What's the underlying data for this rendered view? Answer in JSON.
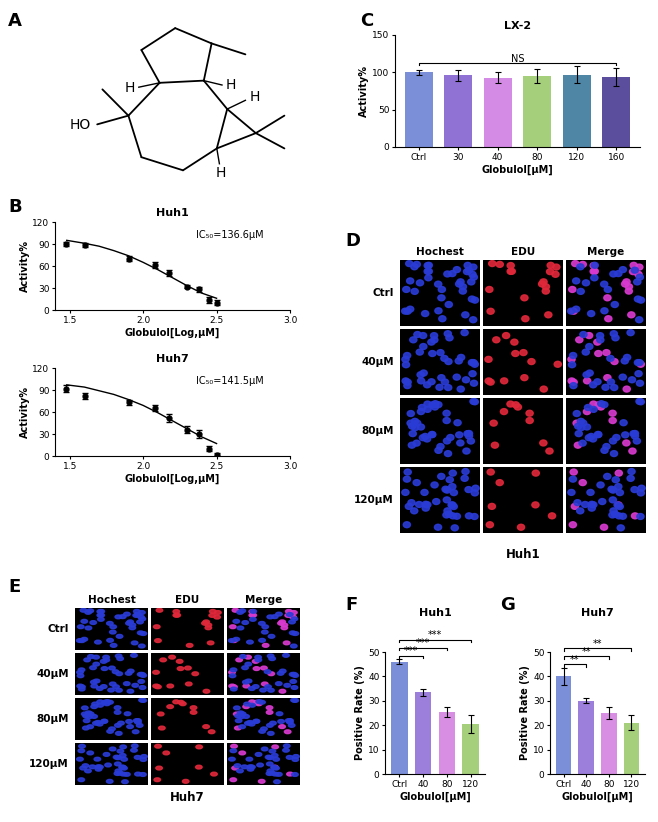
{
  "panel_labels": [
    "A",
    "B",
    "C",
    "D",
    "E",
    "F",
    "G"
  ],
  "structure": {
    "atom_labels": [
      "H",
      "H",
      "H",
      "H",
      "HO"
    ]
  },
  "chart_data": [
    {
      "type": "scatter",
      "title": "Huh1",
      "x_label": "Globulol[Log,μM]",
      "y_label": "Activity%",
      "xlim": [
        1.4,
        3.0
      ],
      "xticks": [
        1.5,
        2.0,
        2.5,
        3.0
      ],
      "ylim": [
        0,
        120
      ],
      "yticks": [
        0,
        30,
        60,
        90,
        120
      ],
      "annotations": [
        {
          "text": "IC₅₀=136.6μM"
        }
      ],
      "series": [
        {
          "type": "scatter",
          "color": "#000000",
          "marker": "circle",
          "x": [
            1.477,
            1.602,
            1.903,
            2.079,
            2.176,
            2.301,
            2.38,
            2.447,
            2.505
          ],
          "values": [
            90,
            89,
            70,
            61,
            50,
            32,
            28,
            14,
            10
          ],
          "errors": [
            3,
            3,
            3,
            4,
            4,
            2,
            4,
            4,
            3
          ]
        },
        {
          "type": "line",
          "color": "#000000",
          "x": [
            1.48,
            1.6,
            1.7,
            1.8,
            1.9,
            2.0,
            2.1,
            2.2,
            2.3,
            2.4,
            2.5
          ],
          "values": [
            95,
            91,
            87,
            81,
            74,
            65,
            55,
            44,
            33,
            23,
            16
          ]
        }
      ]
    },
    {
      "type": "scatter",
      "title": "Huh7",
      "x_label": "Globulol[Log,μM]",
      "y_label": "Activity%",
      "xlim": [
        1.4,
        3.0
      ],
      "xticks": [
        1.5,
        2.0,
        2.5,
        3.0
      ],
      "ylim": [
        0,
        120
      ],
      "yticks": [
        0,
        30,
        60,
        90,
        120
      ],
      "annotations": [
        {
          "text": "IC₅₀=141.5μM"
        }
      ],
      "series": [
        {
          "type": "scatter",
          "color": "#000000",
          "marker": "circle",
          "x": [
            1.477,
            1.602,
            1.903,
            2.079,
            2.176,
            2.301,
            2.38,
            2.447,
            2.505
          ],
          "values": [
            92,
            82,
            73,
            65,
            52,
            36,
            30,
            10,
            2
          ],
          "errors": [
            5,
            4,
            3,
            4,
            5,
            5,
            5,
            3,
            2
          ]
        },
        {
          "type": "line",
          "color": "#000000",
          "x": [
            1.48,
            1.6,
            1.7,
            1.8,
            1.9,
            2.0,
            2.1,
            2.2,
            2.3,
            2.4,
            2.5
          ],
          "values": [
            97,
            94,
            89,
            84,
            77,
            69,
            59,
            48,
            37,
            26,
            17
          ]
        }
      ]
    },
    {
      "type": "bar",
      "title": "LX-2",
      "x_label": "Globulol[μM]",
      "y_label": "Activity%",
      "categories": [
        "Ctrl",
        "30",
        "40",
        "80",
        "120",
        "160"
      ],
      "values": [
        100,
        96,
        93,
        95,
        97,
        94
      ],
      "errors": [
        3,
        7,
        7,
        9,
        11,
        12
      ],
      "colors": [
        "#7b8fd9",
        "#8f72d4",
        "#d48be6",
        "#a6cf7c",
        "#4f86a6",
        "#5b4e9c"
      ],
      "ylim": [
        0,
        150
      ],
      "yticks": [
        0,
        50,
        100,
        150
      ],
      "annotations": [
        {
          "from": "Ctrl",
          "to": "160",
          "text": "NS"
        }
      ]
    },
    {
      "type": "bar",
      "title": "Huh1",
      "x_label": "Globulol[μM]",
      "y_label": "Positive Rate (%)",
      "categories": [
        "Ctrl",
        "40",
        "80",
        "120"
      ],
      "values": [
        46,
        33.5,
        25.5,
        20.5
      ],
      "errors": [
        1,
        1.5,
        2,
        3.5
      ],
      "colors": [
        "#7b8fd9",
        "#9c7edb",
        "#d88fe3",
        "#a6cf7c"
      ],
      "ylim": [
        0,
        50
      ],
      "yticks": [
        0,
        10,
        20,
        30,
        40,
        50
      ],
      "annotations": [
        {
          "from": "Ctrl",
          "to": "40",
          "text": "***"
        },
        {
          "from": "Ctrl",
          "to": "80",
          "text": "***"
        },
        {
          "from": "Ctrl",
          "to": "120",
          "text": "***"
        }
      ]
    },
    {
      "type": "bar",
      "title": "Huh7",
      "x_label": "Globulol[μM]",
      "y_label": "Positive Rate (%)",
      "categories": [
        "Ctrl",
        "40",
        "80",
        "120"
      ],
      "values": [
        40,
        30,
        25,
        21
      ],
      "errors": [
        3.5,
        1,
        2.5,
        3
      ],
      "colors": [
        "#7b8fd9",
        "#9c7edb",
        "#d88fe3",
        "#a6cf7c"
      ],
      "ylim": [
        0,
        50
      ],
      "yticks": [
        0,
        10,
        20,
        30,
        40,
        50
      ],
      "annotations": [
        {
          "from": "Ctrl",
          "to": "40",
          "text": "**"
        },
        {
          "from": "Ctrl",
          "to": "80",
          "text": "**"
        },
        {
          "from": "Ctrl",
          "to": "120",
          "text": "**"
        }
      ]
    }
  ],
  "images": [
    {
      "cell_line": "Huh1",
      "columns": [
        "Hochest",
        "EDU",
        "Merge"
      ],
      "rows": [
        "Ctrl",
        "40μM",
        "80μM",
        "120μM"
      ]
    },
    {
      "cell_line": "Huh7",
      "columns": [
        "Hochest",
        "EDU",
        "Merge"
      ],
      "rows": [
        "Ctrl",
        "40μM",
        "80μM",
        "120μM"
      ]
    }
  ]
}
